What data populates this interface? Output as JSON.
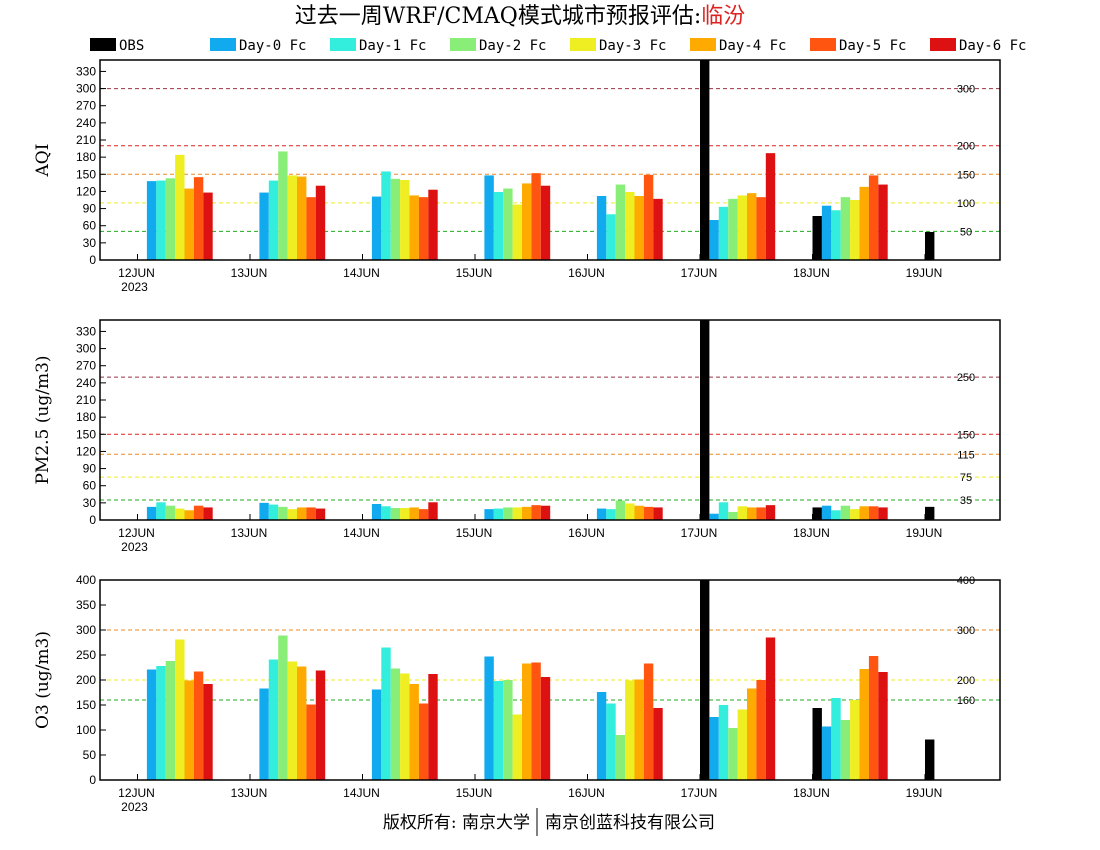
{
  "title": {
    "prefix": "过去一周WRF/CMAQ模式城市预报评估:",
    "city": "临汾",
    "city_color": "#dd2222"
  },
  "footer": {
    "left": "版权所有: 南京大学",
    "right": "南京创蓝科技有限公司"
  },
  "chart_data": {
    "type": "bar",
    "legend_placement": "top",
    "grid": false,
    "series": [
      {
        "name": "OBS",
        "color": "#000000"
      },
      {
        "name": "Day-0 Fc",
        "color": "#11aaee"
      },
      {
        "name": "Day-1 Fc",
        "color": "#33eedd"
      },
      {
        "name": "Day-2 Fc",
        "color": "#88ee77"
      },
      {
        "name": "Day-3 Fc",
        "color": "#eeee22"
      },
      {
        "name": "Day-4 Fc",
        "color": "#ffaa00"
      },
      {
        "name": "Day-5 Fc",
        "color": "#ff5511"
      },
      {
        "name": "Day-6 Fc",
        "color": "#dd1111"
      }
    ],
    "dates": [
      "12JUN",
      "13JUN",
      "14JUN",
      "15JUN",
      "16JUN",
      "17JUN",
      "18JUN",
      "19JUN"
    ],
    "year_label": "2023",
    "panels": [
      {
        "id": "aqi",
        "ylabel": "AQI",
        "ylim": [
          0,
          350
        ],
        "yticks": [
          0,
          30,
          60,
          90,
          120,
          150,
          180,
          210,
          240,
          270,
          300,
          330
        ],
        "reference_lines": [
          {
            "value": 50,
            "label": "50",
            "color": "#22aa22"
          },
          {
            "value": 100,
            "label": "100",
            "color": "#eeee22"
          },
          {
            "value": 150,
            "label": "150",
            "color": "#ee8822"
          },
          {
            "value": 200,
            "label": "200",
            "color": "#dd2222"
          },
          {
            "value": 300,
            "label": "300",
            "color": "#993344"
          }
        ],
        "values": [
          [
            null,
            138,
            139,
            143,
            184,
            125,
            145,
            118
          ],
          [
            null,
            118,
            139,
            190,
            148,
            146,
            110,
            130
          ],
          [
            null,
            111,
            155,
            142,
            140,
            113,
            110,
            123
          ],
          [
            null,
            148,
            119,
            125,
            97,
            134,
            152,
            130
          ],
          [
            null,
            112,
            80,
            132,
            119,
            112,
            149,
            107
          ],
          [
            350,
            70,
            93,
            107,
            113,
            117,
            110,
            187
          ],
          [
            77,
            95,
            87,
            110,
            105,
            128,
            148,
            132
          ],
          [
            49,
            null,
            null,
            null,
            null,
            null,
            null,
            null
          ]
        ]
      },
      {
        "id": "pm25",
        "ylabel": "PM2.5 (ug/m3)",
        "ylim": [
          0,
          350
        ],
        "yticks": [
          0,
          30,
          60,
          90,
          120,
          150,
          180,
          210,
          240,
          270,
          300,
          330
        ],
        "reference_lines": [
          {
            "value": 35,
            "label": "35",
            "color": "#22aa22"
          },
          {
            "value": 75,
            "label": "75",
            "color": "#eeee22"
          },
          {
            "value": 115,
            "label": "115",
            "color": "#ee8822"
          },
          {
            "value": 150,
            "label": "150",
            "color": "#dd2222"
          },
          {
            "value": 250,
            "label": "250",
            "color": "#993344"
          }
        ],
        "values": [
          [
            null,
            23,
            31,
            25,
            20,
            17,
            25,
            22
          ],
          [
            null,
            30,
            27,
            23,
            19,
            22,
            22,
            20
          ],
          [
            null,
            28,
            24,
            21,
            21,
            22,
            19,
            31
          ],
          [
            null,
            19,
            20,
            22,
            22,
            23,
            26,
            25
          ],
          [
            null,
            20,
            19,
            34,
            29,
            25,
            23,
            22
          ],
          [
            350,
            11,
            31,
            14,
            24,
            22,
            22,
            26
          ],
          [
            22,
            25,
            17,
            25,
            19,
            24,
            24,
            22
          ],
          [
            23,
            null,
            null,
            null,
            null,
            null,
            null,
            null
          ]
        ]
      },
      {
        "id": "o3",
        "ylabel": "O3 (ug/m3)",
        "ylim": [
          0,
          400
        ],
        "yticks": [
          0,
          50,
          100,
          150,
          200,
          250,
          300,
          350,
          400
        ],
        "reference_lines": [
          {
            "value": 160,
            "label": "160",
            "color": "#22aa22"
          },
          {
            "value": 200,
            "label": "200",
            "color": "#eeee22"
          },
          {
            "value": 300,
            "label": "300",
            "color": "#ee8822"
          },
          {
            "value": 400,
            "label": "400",
            "color": "#dd2222"
          }
        ],
        "values": [
          [
            null,
            221,
            228,
            238,
            281,
            199,
            217,
            192
          ],
          [
            null,
            183,
            241,
            289,
            237,
            227,
            151,
            219
          ],
          [
            null,
            181,
            265,
            223,
            213,
            192,
            153,
            212
          ],
          [
            null,
            247,
            198,
            200,
            131,
            233,
            235,
            206
          ],
          [
            null,
            176,
            153,
            90,
            199,
            201,
            233,
            144
          ],
          [
            400,
            126,
            150,
            104,
            141,
            183,
            200,
            285
          ],
          [
            144,
            107,
            164,
            120,
            160,
            222,
            248,
            216
          ],
          [
            81,
            null,
            null,
            null,
            null,
            null,
            null,
            null
          ]
        ]
      }
    ]
  }
}
